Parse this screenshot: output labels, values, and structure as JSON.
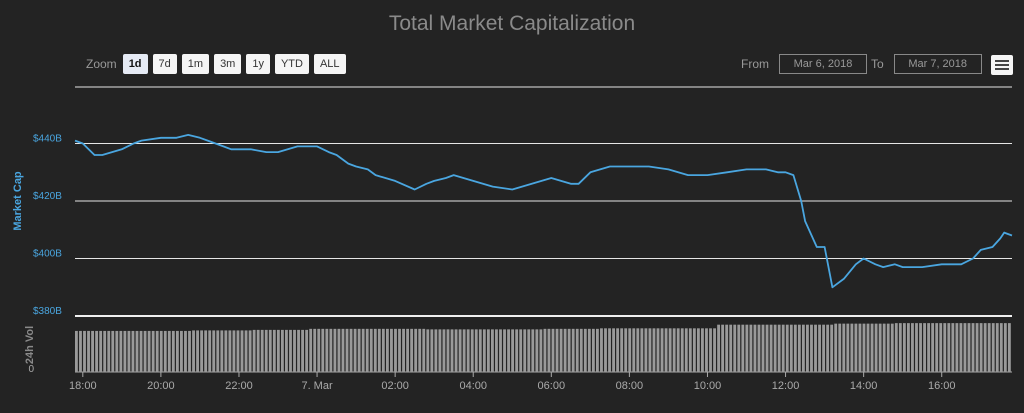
{
  "chart_data": {
    "type": "line",
    "title": "Total Market Capitalization",
    "ylabel": "Market Cap",
    "volume_label": "24h Vol",
    "ylim": [
      380,
      460
    ],
    "y_ticks": [
      {
        "value": 380,
        "label": "$380B"
      },
      {
        "value": 400,
        "label": "$400B"
      },
      {
        "value": 420,
        "label": "$420B"
      },
      {
        "value": 440,
        "label": "$440B"
      }
    ],
    "volume_zero_label": "0",
    "x_ticks": [
      "18:00",
      "20:00",
      "22:00",
      "7. Mar",
      "02:00",
      "04:00",
      "06:00",
      "08:00",
      "10:00",
      "12:00",
      "14:00",
      "16:00"
    ],
    "x_hours_range": [
      17.8,
      41.8
    ],
    "series": [
      {
        "type": "line",
        "color": "#4aa6e0",
        "x_hours": [
          17.8,
          18.0,
          18.3,
          18.5,
          19.0,
          19.3,
          19.5,
          20.0,
          20.4,
          20.7,
          21.0,
          21.2,
          21.6,
          21.8,
          22.0,
          22.3,
          22.7,
          23.0,
          23.5,
          23.7,
          24.0,
          24.3,
          24.5,
          24.8,
          25.0,
          25.3,
          25.5,
          26.0,
          26.5,
          26.8,
          27.0,
          27.3,
          27.5,
          28.0,
          28.5,
          29.0,
          29.5,
          30.0,
          30.5,
          30.7,
          31.0,
          31.5,
          32.0,
          32.5,
          33.0,
          33.5,
          34.0,
          34.5,
          35.0,
          35.5,
          35.8,
          36.0,
          36.2,
          36.4,
          36.5,
          36.8,
          37.0,
          37.2,
          37.5,
          37.8,
          38.0,
          38.3,
          38.5,
          38.8,
          39.0,
          39.5,
          40.0,
          40.5,
          40.8,
          41.0,
          41.3,
          41.5,
          41.6,
          41.8
        ],
        "values": [
          441,
          440,
          436,
          436,
          438,
          440,
          441,
          442,
          442,
          443,
          442,
          441,
          439,
          438,
          438,
          438,
          437,
          437,
          439,
          439,
          439,
          437,
          436,
          433,
          432,
          431,
          429,
          427,
          424,
          426,
          427,
          428,
          429,
          427,
          425,
          424,
          426,
          428,
          426,
          426,
          430,
          432,
          432,
          432,
          431,
          429,
          429,
          430,
          431,
          431,
          430,
          430,
          429,
          420,
          413,
          404,
          404,
          390,
          393,
          398,
          400,
          398,
          397,
          398,
          397,
          397,
          398,
          398,
          400,
          403,
          404,
          407,
          409,
          408
        ],
        "name": ""
      },
      {
        "type": "bar",
        "color": "#9a9a9a",
        "name": "24h Vol",
        "volume_levels": [
          0.79,
          0.79,
          0.8,
          0.81,
          0.83,
          0.83,
          0.82,
          0.82,
          0.83,
          0.84,
          0.84,
          0.91,
          0.91,
          0.93,
          0.94,
          0.94
        ]
      }
    ]
  },
  "zoom": {
    "label": "Zoom",
    "buttons": [
      "1d",
      "7d",
      "1m",
      "3m",
      "1y",
      "YTD",
      "ALL"
    ],
    "active": "1d"
  },
  "range": {
    "from_label": "From",
    "from_value": "Mar 6, 2018",
    "to_label": "To",
    "to_value": "Mar 7, 2018"
  },
  "menu_icon": "hamburger-menu-icon",
  "colors": {
    "background": "#232323",
    "line": "#4aa6e0",
    "volume": "#9a9a9a",
    "grid": "#e6e6e6"
  }
}
